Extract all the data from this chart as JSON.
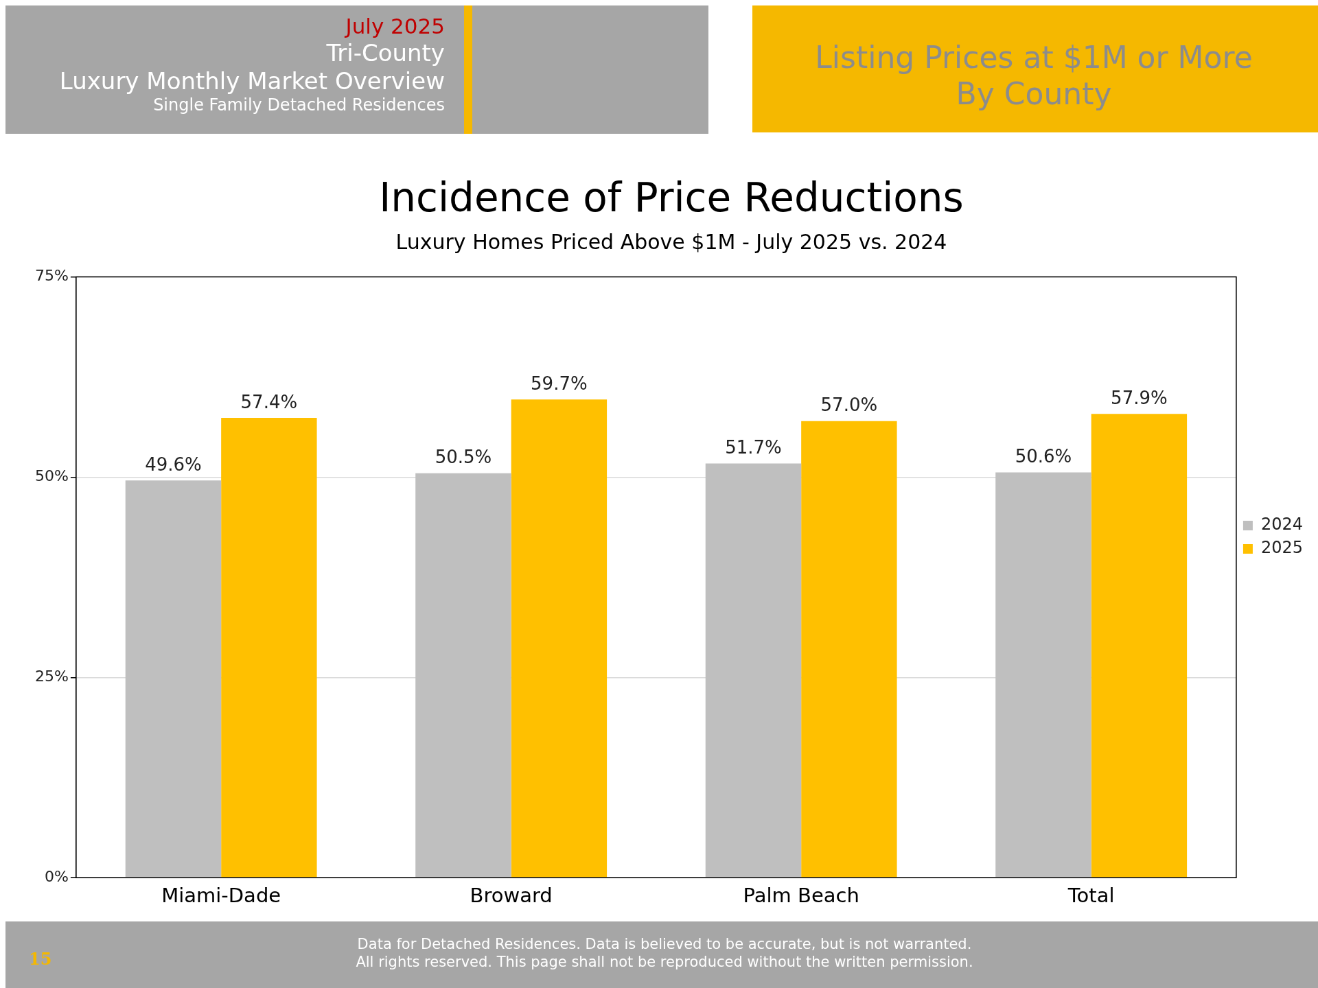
{
  "chart_data": {
    "type": "bar",
    "title": "Incidence of Price Reductions",
    "subtitle": "Luxury Homes Priced Above $1M - July 2025 vs. 2024",
    "categories": [
      "Miami-Dade",
      "Broward",
      "Palm Beach",
      "Total"
    ],
    "series": [
      {
        "name": "2024",
        "color": "#bfbfbf",
        "values": [
          49.6,
          50.5,
          51.7,
          50.6
        ],
        "value_labels": [
          "49.6%",
          "50.5%",
          "51.7%",
          "50.6%"
        ]
      },
      {
        "name": "2025",
        "color": "#ffc000",
        "values": [
          57.4,
          59.7,
          57.0,
          57.9
        ],
        "value_labels": [
          "57.4%",
          "59.7%",
          "57.0%",
          "57.9%"
        ]
      }
    ],
    "ylim": [
      0,
      75
    ],
    "yticks": [
      {
        "value": 0,
        "label": "0%"
      },
      {
        "value": 25,
        "label": "25%"
      },
      {
        "value": 50,
        "label": "50%"
      },
      {
        "value": 75,
        "label": "75%"
      }
    ],
    "grid": "y",
    "legend": "right",
    "annotations": [
      "July 2025",
      "Tri-County",
      "Luxury Monthly Market Overview",
      "Single Family Detached Residences",
      "Listing Prices at $1M or More",
      "By County",
      "15",
      "Data for Detached Residences.  Data is believed to be accurate, but is not warranted.",
      "All rights reserved. This page shall not be reproduced without the written permission."
    ]
  }
}
